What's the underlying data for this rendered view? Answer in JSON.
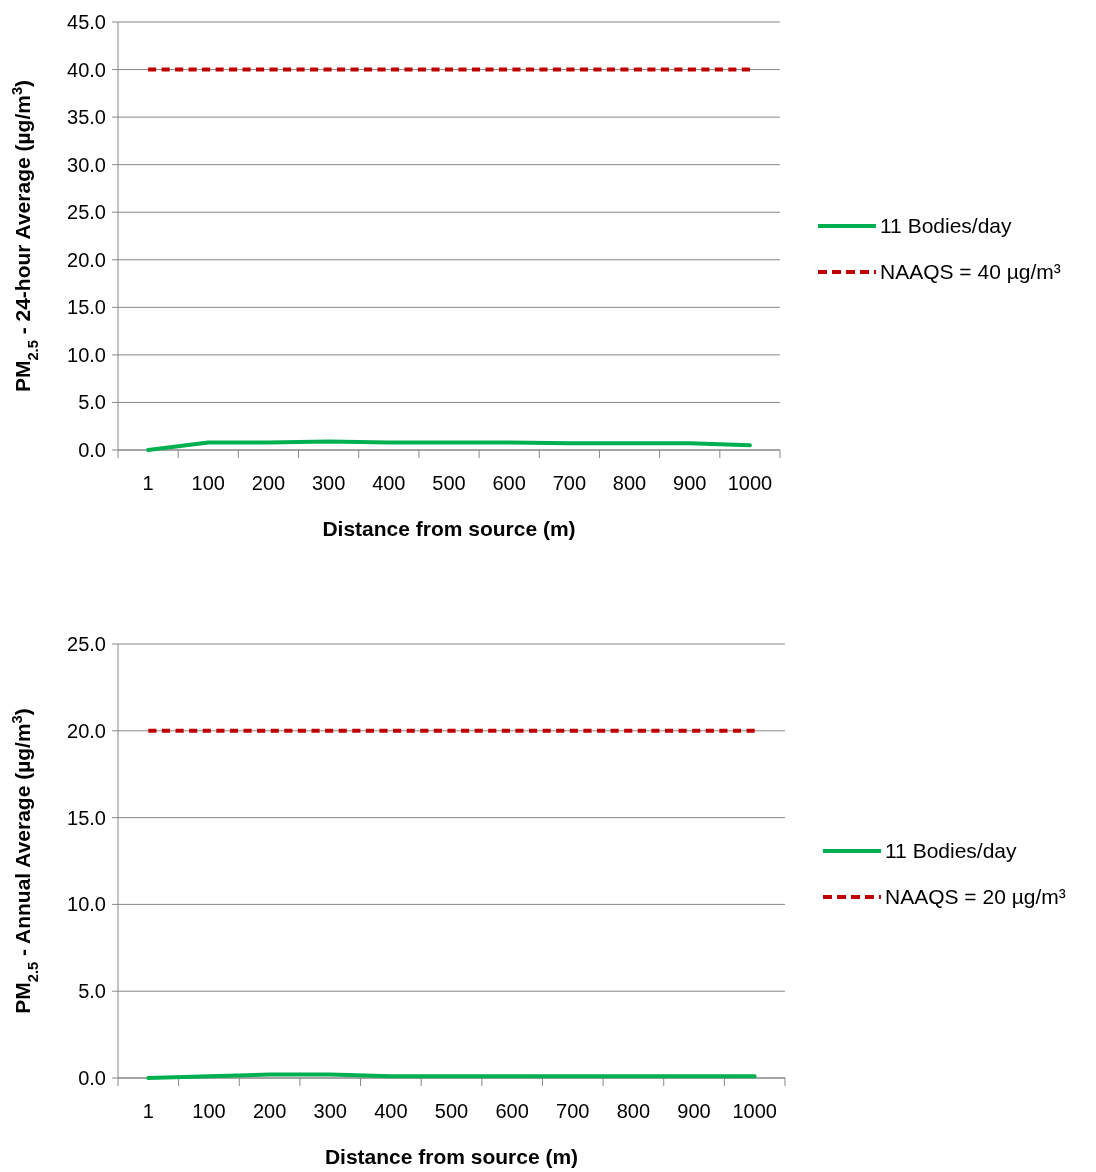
{
  "chart_data": [
    {
      "type": "line",
      "xlabel": "Distance from source (m)",
      "ylabel": "PM$_{2.5}$ - 24-hour Average (µg/m$^{3}$)",
      "categories": [
        "1",
        "100",
        "200",
        "300",
        "400",
        "500",
        "600",
        "700",
        "800",
        "900",
        "1000"
      ],
      "series": [
        {
          "name": "11 Bodies/day",
          "color": "#00b050",
          "line_style": "solid",
          "values": [
            0.0,
            0.8,
            0.8,
            0.9,
            0.8,
            0.8,
            0.8,
            0.7,
            0.7,
            0.7,
            0.5
          ]
        },
        {
          "name": "NAAQS = 40 µg/m³",
          "color": "#c00000",
          "line_style": "dashed",
          "values": [
            40,
            40,
            40,
            40,
            40,
            40,
            40,
            40,
            40,
            40,
            40
          ]
        }
      ],
      "ylim": [
        0,
        45
      ],
      "yticks": [
        {
          "value": 0,
          "label": "0.0"
        },
        {
          "value": 5,
          "label": "5.0"
        },
        {
          "value": 10,
          "label": "10.0"
        },
        {
          "value": 15,
          "label": "15.0"
        },
        {
          "value": 20,
          "label": "20.0"
        },
        {
          "value": 25,
          "label": "25.0"
        },
        {
          "value": 30,
          "label": "30.0"
        },
        {
          "value": 35,
          "label": "35.0"
        },
        {
          "value": 40,
          "label": "40.0"
        },
        {
          "value": 45,
          "label": "45.0"
        }
      ],
      "grid": "y",
      "legend": "right",
      "marker": "none"
    },
    {
      "type": "line",
      "xlabel": "Distance from source (m)",
      "ylabel": "PM$_{2.5}$ - Annual Average (µg/m$^{3}$)",
      "categories": [
        "1",
        "100",
        "200",
        "300",
        "400",
        "500",
        "600",
        "700",
        "800",
        "900",
        "1000"
      ],
      "series": [
        {
          "name": "11 Bodies/day",
          "color": "#00b050",
          "line_style": "solid",
          "values": [
            0.0,
            0.1,
            0.2,
            0.2,
            0.1,
            0.1,
            0.1,
            0.1,
            0.1,
            0.1,
            0.1
          ]
        },
        {
          "name": "NAAQS = 20 µg/m³",
          "color": "#c00000",
          "line_style": "dashed",
          "values": [
            20,
            20,
            20,
            20,
            20,
            20,
            20,
            20,
            20,
            20,
            20
          ]
        }
      ],
      "ylim": [
        0,
        25
      ],
      "yticks": [
        {
          "value": 0,
          "label": "0.0"
        },
        {
          "value": 5,
          "label": "5.0"
        },
        {
          "value": 10,
          "label": "10.0"
        },
        {
          "value": 15,
          "label": "15.0"
        },
        {
          "value": 20,
          "label": "20.0"
        },
        {
          "value": 25,
          "label": "25.0"
        }
      ],
      "grid": "y",
      "legend": "right",
      "marker": "none"
    }
  ]
}
